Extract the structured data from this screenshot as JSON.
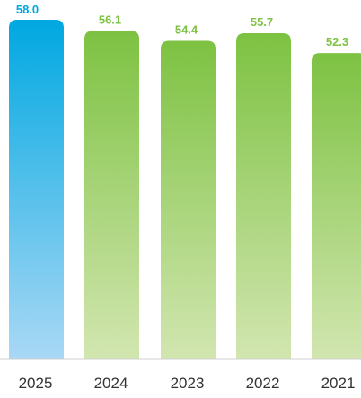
{
  "chart_data": {
    "type": "bar",
    "categories": [
      "2025",
      "2024",
      "2023",
      "2022",
      "2021"
    ],
    "values": [
      58.0,
      56.1,
      54.4,
      55.7,
      52.3
    ],
    "value_labels": [
      "58.0",
      "56.1",
      "54.4",
      "55.7",
      "52.3"
    ],
    "title": "",
    "xlabel": "",
    "ylabel": "",
    "ylim": [
      0,
      58.0
    ],
    "grid": false,
    "legend": "none"
  },
  "colors": {
    "highlight_top": "#00a8e1",
    "highlight_bottom": "#a9d8f5",
    "highlight_label": "#00a8e1",
    "regular_top": "#7dc242",
    "regular_bottom": "#d2e6b0",
    "regular_label": "#7dc242",
    "axis_line": "#cfcfcf"
  }
}
